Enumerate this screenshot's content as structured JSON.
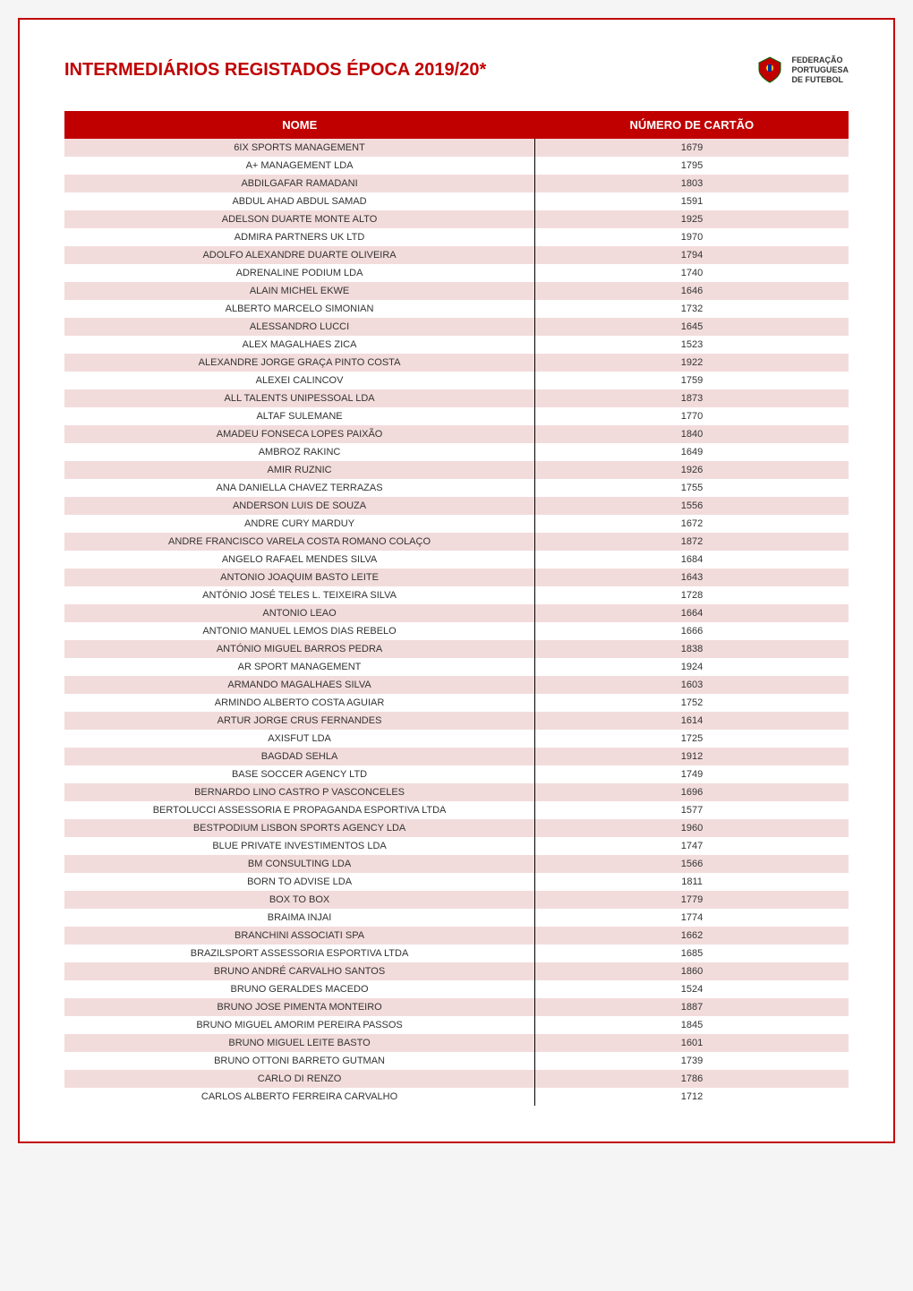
{
  "title": "INTERMEDIÁRIOS REGISTADOS ÉPOCA 2019/20*",
  "logo_text_line1": "FEDERAÇÃO",
  "logo_text_line2": "PORTUGUESA",
  "logo_text_line3": "DE FUTEBOL",
  "table": {
    "columns": [
      "NOME",
      "NÚMERO DE CARTÃO"
    ],
    "rows": [
      [
        "6IX SPORTS MANAGEMENT",
        "1679"
      ],
      [
        "A+ MANAGEMENT LDA",
        "1795"
      ],
      [
        "ABDILGAFAR RAMADANI",
        "1803"
      ],
      [
        "ABDUL AHAD ABDUL SAMAD",
        "1591"
      ],
      [
        "ADELSON DUARTE MONTE ALTO",
        "1925"
      ],
      [
        "ADMIRA PARTNERS UK LTD",
        "1970"
      ],
      [
        "ADOLFO ALEXANDRE DUARTE OLIVEIRA",
        "1794"
      ],
      [
        "ADRENALINE PODIUM LDA",
        "1740"
      ],
      [
        "ALAIN MICHEL EKWE",
        "1646"
      ],
      [
        "ALBERTO MARCELO SIMONIAN",
        "1732"
      ],
      [
        "ALESSANDRO LUCCI",
        "1645"
      ],
      [
        "ALEX MAGALHAES ZICA",
        "1523"
      ],
      [
        "ALEXANDRE JORGE GRAÇA PINTO COSTA",
        "1922"
      ],
      [
        "ALEXEI CALINCOV",
        "1759"
      ],
      [
        "ALL TALENTS UNIPESSOAL LDA",
        "1873"
      ],
      [
        "ALTAF SULEMANE",
        "1770"
      ],
      [
        "AMADEU FONSECA LOPES PAIXÃO",
        "1840"
      ],
      [
        "AMBROZ RAKINC",
        "1649"
      ],
      [
        "AMIR RUZNIC",
        "1926"
      ],
      [
        "ANA DANIELLA CHAVEZ TERRAZAS",
        "1755"
      ],
      [
        "ANDERSON LUIS DE SOUZA",
        "1556"
      ],
      [
        "ANDRE CURY MARDUY",
        "1672"
      ],
      [
        "ANDRE FRANCISCO VARELA COSTA ROMANO COLAÇO",
        "1872"
      ],
      [
        "ANGELO RAFAEL MENDES SILVA",
        "1684"
      ],
      [
        "ANTONIO JOAQUIM BASTO LEITE",
        "1643"
      ],
      [
        "ANTÓNIO JOSÉ TELES L. TEIXEIRA SILVA",
        "1728"
      ],
      [
        "ANTONIO LEAO",
        "1664"
      ],
      [
        "ANTONIO MANUEL LEMOS DIAS REBELO",
        "1666"
      ],
      [
        "ANTÓNIO MIGUEL BARROS PEDRA",
        "1838"
      ],
      [
        "AR SPORT MANAGEMENT",
        "1924"
      ],
      [
        "ARMANDO MAGALHAES SILVA",
        "1603"
      ],
      [
        "ARMINDO ALBERTO COSTA AGUIAR",
        "1752"
      ],
      [
        "ARTUR JORGE CRUS FERNANDES",
        "1614"
      ],
      [
        "AXISFUT LDA",
        "1725"
      ],
      [
        "BAGDAD SEHLA",
        "1912"
      ],
      [
        "BASE SOCCER AGENCY LTD",
        "1749"
      ],
      [
        "BERNARDO LINO CASTRO P VASCONCELES",
        "1696"
      ],
      [
        "BERTOLUCCI ASSESSORIA E PROPAGANDA ESPORTIVA LTDA",
        "1577"
      ],
      [
        "BESTPODIUM LISBON SPORTS AGENCY LDA",
        "1960"
      ],
      [
        "BLUE PRIVATE INVESTIMENTOS LDA",
        "1747"
      ],
      [
        "BM CONSULTING LDA",
        "1566"
      ],
      [
        "BORN TO ADVISE LDA",
        "1811"
      ],
      [
        "BOX TO BOX",
        "1779"
      ],
      [
        "BRAIMA INJAI",
        "1774"
      ],
      [
        "BRANCHINI ASSOCIATI SPA",
        "1662"
      ],
      [
        "BRAZILSPORT ASSESSORIA ESPORTIVA LTDA",
        "1685"
      ],
      [
        "BRUNO ANDRÉ CARVALHO SANTOS",
        "1860"
      ],
      [
        "BRUNO GERALDES MACEDO",
        "1524"
      ],
      [
        "BRUNO JOSE PIMENTA MONTEIRO",
        "1887"
      ],
      [
        "BRUNO MIGUEL AMORIM PEREIRA PASSOS",
        "1845"
      ],
      [
        "BRUNO MIGUEL LEITE BASTO",
        "1601"
      ],
      [
        "BRUNO OTTONI BARRETO GUTMAN",
        "1739"
      ],
      [
        "CARLO DI RENZO",
        "1786"
      ],
      [
        "CARLOS ALBERTO FERREIRA CARVALHO",
        "1712"
      ]
    ],
    "header_bg": "#c00000",
    "header_text_color": "#ffffff",
    "row_odd_bg": "#f2dcdb",
    "row_even_bg": "#ffffff",
    "text_color": "#333333",
    "font_size_header": 13,
    "font_size_cell": 11
  },
  "colors": {
    "border": "#c00000",
    "title": "#c00000",
    "page_bg": "#ffffff"
  }
}
